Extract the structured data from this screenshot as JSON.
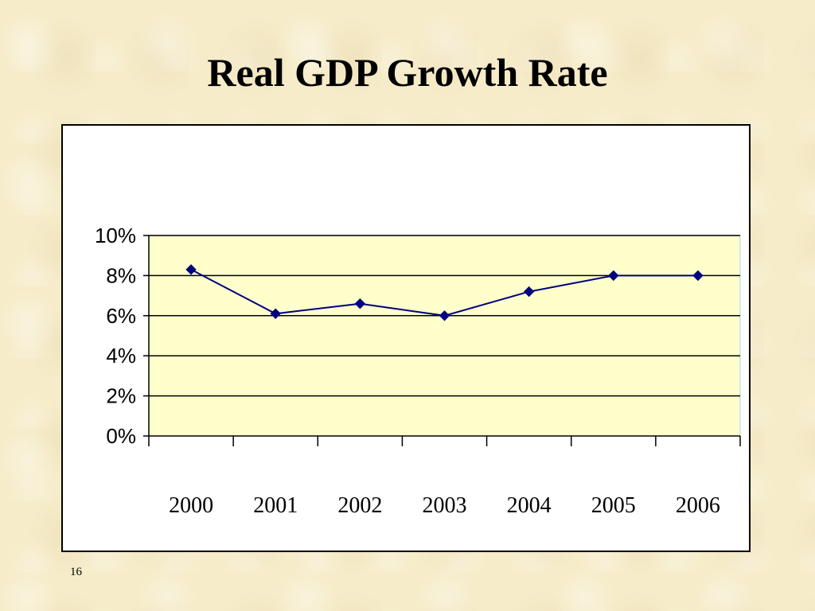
{
  "slide": {
    "title": "Real GDP Growth Rate",
    "page_number": "16"
  },
  "chart_data": {
    "type": "line",
    "categories": [
      "2000",
      "2001",
      "2002",
      "2003",
      "2004",
      "2005",
      "2006"
    ],
    "series": [
      {
        "values": [
          8.3,
          6.1,
          6.6,
          6.0,
          7.2,
          8.0,
          8.0
        ]
      }
    ],
    "yticks": [
      "0%",
      "2%",
      "4%",
      "6%",
      "8%",
      "10%"
    ],
    "ylim": [
      0,
      10
    ],
    "grid": true,
    "colors": {
      "plot_bg": "#ffffcc",
      "line": "#000080",
      "grid": "#000000"
    }
  }
}
